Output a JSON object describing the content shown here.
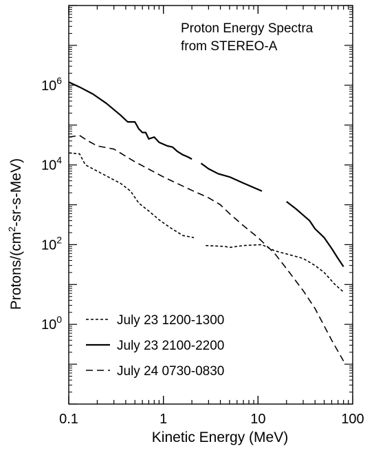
{
  "chart_data": {
    "type": "line",
    "title": "",
    "annotation_lines": [
      "Proton Energy Spectra",
      "from STEREO-A"
    ],
    "xlabel": "Kinetic Energy (MeV)",
    "ylabel": {
      "prefix": "Protons/(cm",
      "sup": "2",
      "suffix": "-sr-s-MeV)"
    },
    "x_scale": "log",
    "y_scale": "log",
    "xlim": [
      0.1,
      100
    ],
    "ylim": [
      0.01,
      100000000
    ],
    "x_ticks": [
      {
        "value": 0.1,
        "label": "0.1"
      },
      {
        "value": 1,
        "label": "1"
      },
      {
        "value": 10,
        "label": "10"
      },
      {
        "value": 100,
        "label": "100"
      }
    ],
    "y_ticks": [
      {
        "value": 1,
        "base": "10",
        "exp": "0"
      },
      {
        "value": 100,
        "base": "10",
        "exp": "2"
      },
      {
        "value": 10000,
        "base": "10",
        "exp": "4"
      },
      {
        "value": 1000000,
        "base": "10",
        "exp": "6"
      }
    ],
    "grid": false,
    "legend_position": "bottom-left",
    "series": [
      {
        "name": "July 23 1200-1300",
        "dash": "4,3",
        "points": [
          [
            0.1,
            20000
          ],
          [
            0.13,
            19000
          ],
          [
            0.15,
            10000
          ],
          [
            0.2,
            7000
          ],
          [
            0.3,
            4200
          ],
          [
            0.35,
            3500
          ],
          [
            0.45,
            2200
          ],
          [
            0.55,
            1100
          ],
          [
            0.7,
            700
          ],
          [
            0.9,
            420
          ],
          [
            1.2,
            260
          ],
          [
            1.6,
            170
          ],
          [
            2.1,
            150
          ]
        ]
      },
      {
        "name": "July 23 1200-1300 (cont.)",
        "dash": "4,3",
        "points": [
          [
            2.8,
            95
          ],
          [
            4.5,
            90
          ],
          [
            5,
            85
          ],
          [
            7,
            95
          ],
          [
            11,
            100
          ],
          [
            15,
            70
          ],
          [
            22,
            55
          ],
          [
            30,
            45
          ],
          [
            40,
            30
          ],
          [
            50,
            20
          ],
          [
            65,
            10
          ],
          [
            80,
            6.5
          ]
        ]
      },
      {
        "name": "July 23 2100-2200",
        "dash": "",
        "points": [
          [
            0.1,
            1200000
          ],
          [
            0.13,
            900000
          ],
          [
            0.18,
            600000
          ],
          [
            0.25,
            350000
          ],
          [
            0.35,
            180000
          ],
          [
            0.42,
            120000
          ],
          [
            0.5,
            120000
          ],
          [
            0.55,
            80000
          ],
          [
            0.6,
            65000
          ],
          [
            0.65,
            65000
          ],
          [
            0.7,
            45000
          ],
          [
            0.8,
            50000
          ],
          [
            0.9,
            37000
          ],
          [
            1.1,
            30000
          ],
          [
            1.25,
            28000
          ],
          [
            1.4,
            22000
          ],
          [
            1.6,
            18000
          ],
          [
            1.8,
            16000
          ],
          [
            2.0,
            14000
          ]
        ]
      },
      {
        "name": "July 23 2100-2200 (cont. 1)",
        "dash": "",
        "points": [
          [
            2.5,
            11000
          ],
          [
            3,
            8000
          ],
          [
            3.8,
            6000
          ],
          [
            5,
            5000
          ],
          [
            7,
            3500
          ],
          [
            11,
            2200
          ]
        ]
      },
      {
        "name": "July 23 2100-2200 (cont. 2)",
        "dash": "",
        "points": [
          [
            20,
            1200
          ],
          [
            25,
            800
          ],
          [
            30,
            550
          ],
          [
            35,
            400
          ],
          [
            40,
            250
          ],
          [
            50,
            150
          ],
          [
            60,
            80
          ],
          [
            70,
            45
          ],
          [
            80,
            28
          ]
        ]
      },
      {
        "name": "July 24 0730-0830",
        "dash": "10,6",
        "points": [
          [
            0.1,
            50000
          ],
          [
            0.13,
            55000
          ],
          [
            0.16,
            40000
          ],
          [
            0.2,
            30000
          ],
          [
            0.3,
            25000
          ],
          [
            0.5,
            12000
          ],
          [
            1,
            5000
          ],
          [
            2,
            2300
          ],
          [
            3,
            1500
          ],
          [
            4,
            1000
          ],
          [
            5,
            600
          ],
          [
            7,
            300
          ],
          [
            10,
            150
          ],
          [
            15,
            60
          ],
          [
            20,
            25
          ],
          [
            30,
            7
          ],
          [
            40,
            2.5
          ],
          [
            60,
            0.4
          ],
          [
            80,
            0.12
          ]
        ]
      }
    ]
  }
}
